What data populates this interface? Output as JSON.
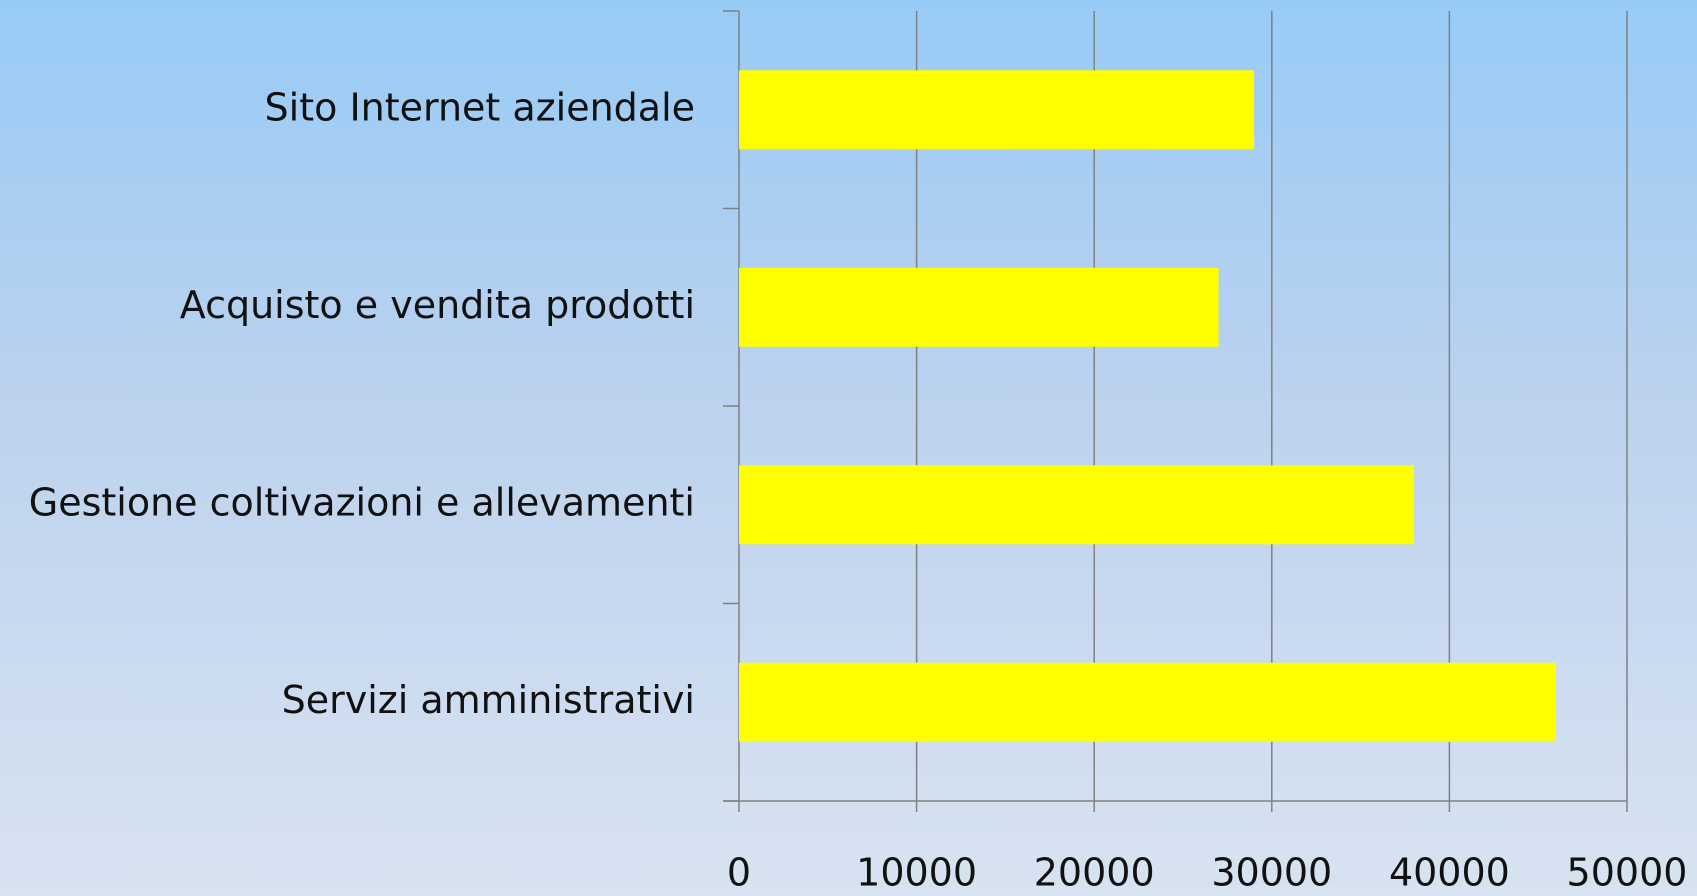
{
  "chart_data": {
    "type": "barh",
    "categories": [
      "Sito Internet aziendale",
      "Acquisto e vendita prodotti",
      "Gestione coltivazioni e allevamenti",
      "Servizi amministrativi"
    ],
    "values": [
      29000,
      27000,
      38000,
      46000
    ],
    "color": "#ffff00",
    "xlim": [
      0,
      50000
    ],
    "xticks": [
      0,
      10000,
      20000,
      30000,
      40000,
      50000
    ],
    "grid": true
  }
}
